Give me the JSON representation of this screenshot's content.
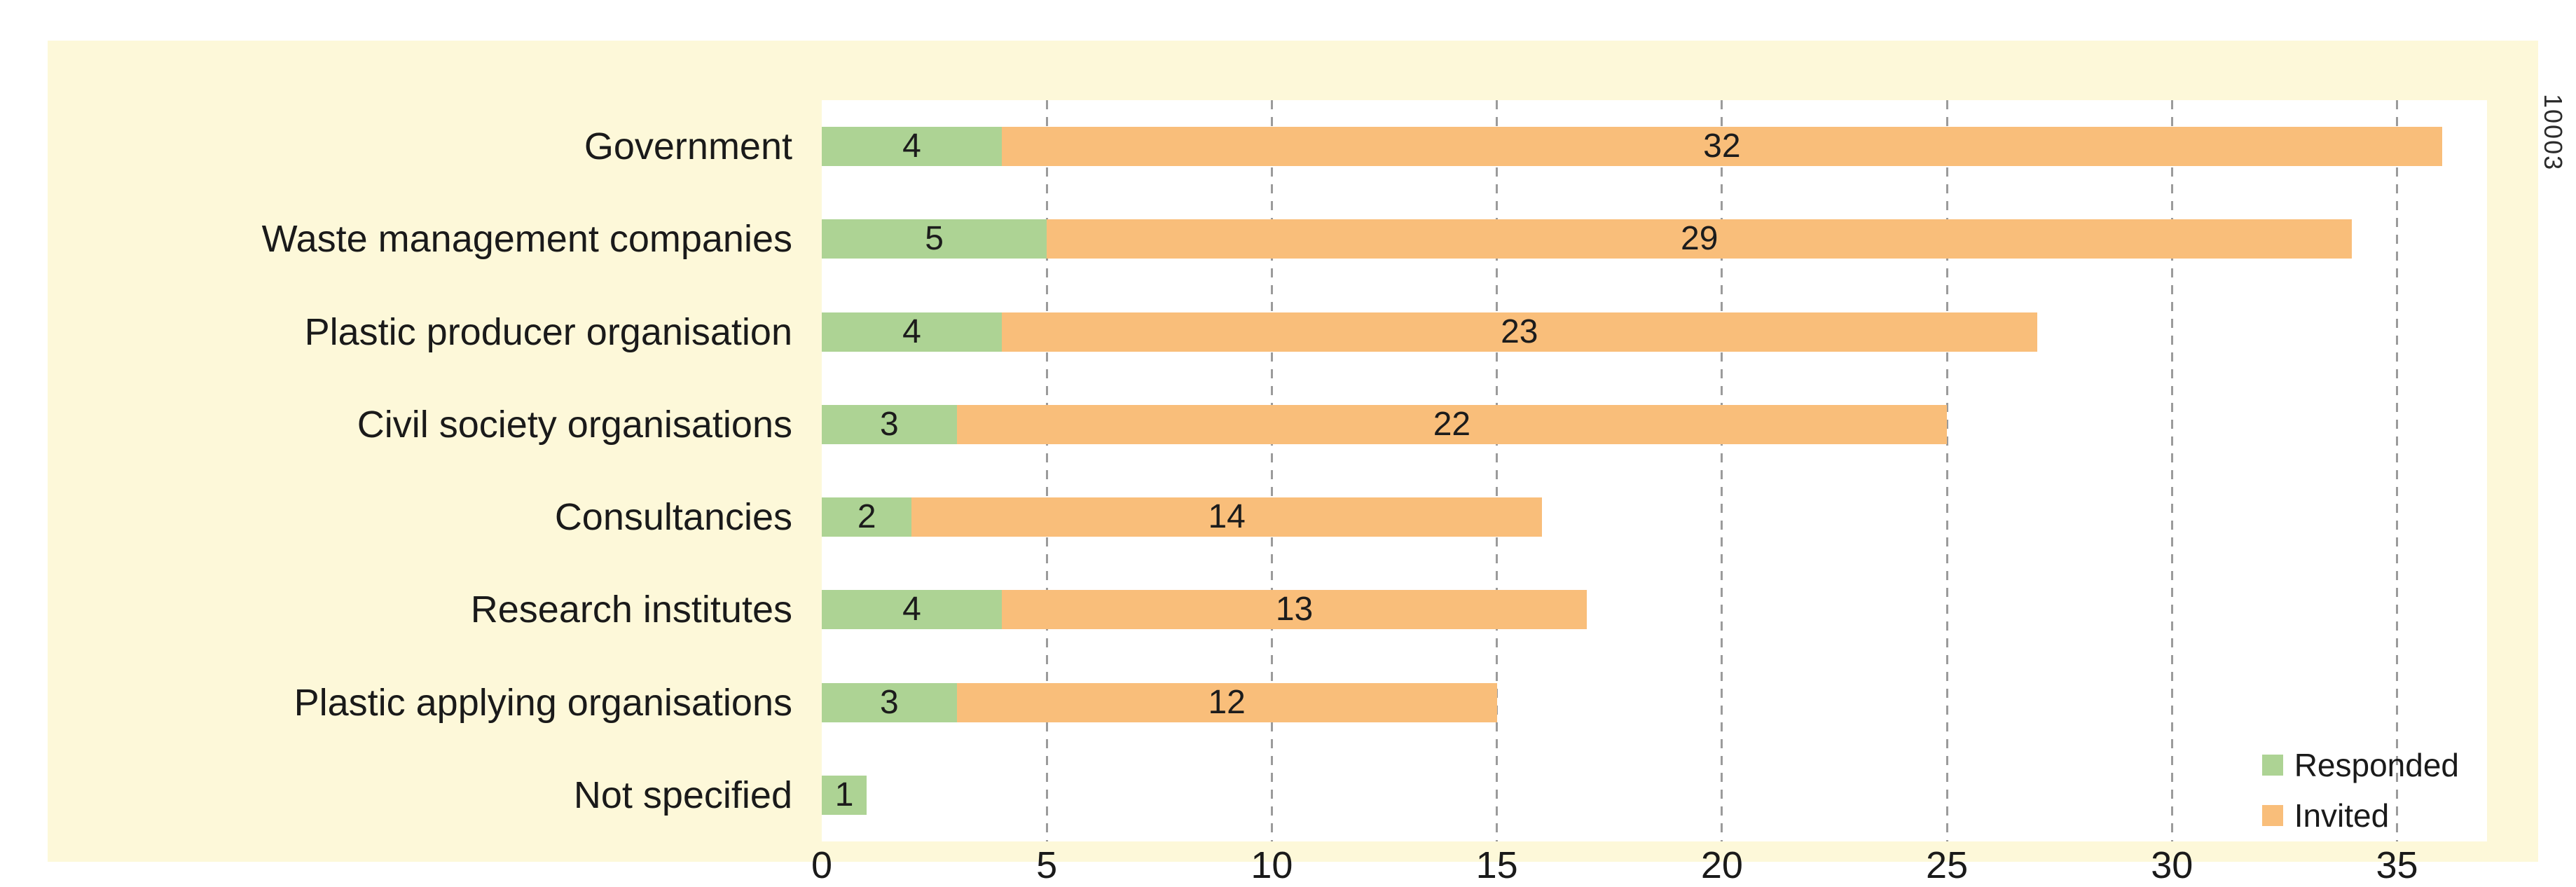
{
  "figure_number": "10003",
  "colors": {
    "responded": "#add394",
    "invited": "#f9be7a",
    "panel_bg": "#fdf8d9",
    "plot_bg": "#ffffff",
    "gridline": "#9b9b9b",
    "text": "#1a1a1a"
  },
  "legend": {
    "position": "bottom-right",
    "items": [
      {
        "label": "Responded",
        "color_key": "responded"
      },
      {
        "label": "Invited",
        "color_key": "invited"
      }
    ]
  },
  "chart_data": {
    "type": "bar",
    "orientation": "horizontal",
    "stacked": true,
    "categories": [
      "Government",
      "Waste management companies",
      "Plastic producer organisation",
      "Civil society organisations",
      "Consultancies",
      "Research institutes",
      "Plastic applying organisations",
      "Not specified"
    ],
    "series": [
      {
        "name": "Responded",
        "values": [
          4,
          5,
          4,
          3,
          2,
          4,
          3,
          1
        ]
      },
      {
        "name": "Invited",
        "values": [
          32,
          29,
          23,
          22,
          14,
          13,
          12,
          0
        ]
      }
    ],
    "totals": [
      36,
      34,
      27,
      25,
      16,
      17,
      15,
      1
    ],
    "xticks": [
      0,
      5,
      10,
      15,
      20,
      25,
      30,
      35
    ],
    "xlim": [
      0,
      37
    ],
    "grid": "dashed-vertical",
    "bar_labels": "value centered in each nonzero segment",
    "title": "",
    "xlabel": "",
    "ylabel": ""
  }
}
